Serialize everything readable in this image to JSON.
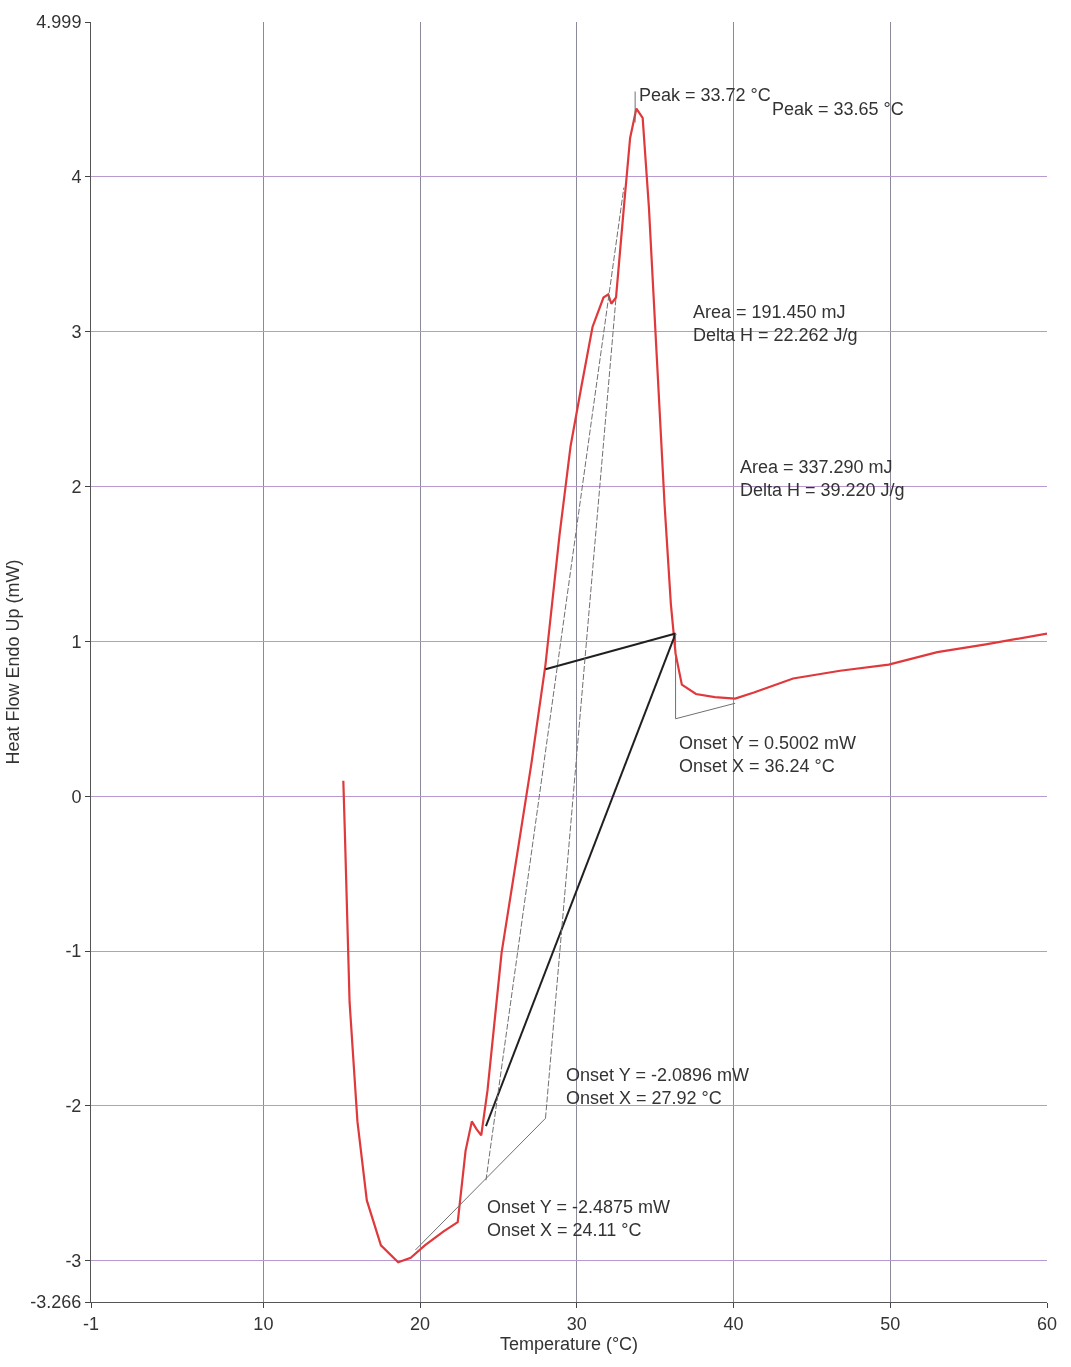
{
  "chart_data": {
    "type": "line",
    "xlabel": "Temperature (°C)",
    "ylabel": "Heat Flow Endo Up (mW)",
    "xlim": [
      -1,
      60
    ],
    "xticks": [
      -1,
      10,
      20,
      30,
      40,
      50,
      60
    ],
    "ylim": [
      -3.266,
      4.999
    ],
    "yticks": [
      -3.266,
      -3,
      -2,
      -1,
      0,
      1,
      2,
      3,
      4,
      4.999
    ],
    "grid": true,
    "marker": "none",
    "series": [
      {
        "color": "#e0393b",
        "x": [
          15.1,
          15.2,
          15.5,
          16.0,
          16.6,
          17.5,
          18.6,
          19.4,
          20.3,
          21.5,
          22.4,
          22.9,
          23.3,
          23.6,
          23.9,
          24.3,
          25.2,
          26.2,
          27.1,
          28.0,
          28.9,
          29.6,
          30.3,
          31.0,
          31.7,
          32.0,
          32.2,
          32.5,
          33.0,
          33.4,
          33.8,
          34.2,
          34.6,
          35.1,
          35.6,
          36.0,
          36.3,
          36.7,
          37.6,
          38.8,
          40.1,
          41.3,
          43.8,
          46.8,
          49.9,
          53.0,
          56.1,
          60.0
        ],
        "values": [
          0.1,
          -0.24,
          -1.33,
          -2.1,
          -2.61,
          -2.9,
          -3.01,
          -2.98,
          -2.9,
          -2.81,
          -2.75,
          -2.29,
          -2.1,
          -2.15,
          -2.19,
          -1.9,
          -1.01,
          -0.37,
          0.21,
          0.85,
          1.69,
          2.26,
          2.65,
          3.03,
          3.22,
          3.24,
          3.18,
          3.22,
          3.8,
          4.25,
          4.44,
          4.38,
          3.8,
          2.84,
          1.88,
          1.24,
          0.92,
          0.72,
          0.66,
          0.64,
          0.63,
          0.67,
          0.76,
          0.81,
          0.85,
          0.93,
          0.98,
          1.05
        ]
      },
      {
        "color": "#202020",
        "x": [
          28.0,
          36.3
        ],
        "values": [
          0.82,
          1.05
        ]
      },
      {
        "color": "#202020",
        "x": [
          24.2,
          36.3
        ],
        "values": [
          -2.13,
          1.05
        ]
      },
      {
        "color": "#707070",
        "x": [
          19.7,
          28.0
        ],
        "values": [
          -2.93,
          -2.08
        ]
      },
      {
        "color": "#707070",
        "x": [
          36.3,
          36.3,
          40.1
        ],
        "values": [
          1.05,
          0.5,
          0.6
        ]
      },
      {
        "color": "#707070",
        "x": [
          33.72,
          33.72
        ],
        "values": [
          4.55,
          4.35
        ]
      },
      {
        "color": "#707070",
        "line_style": "dashed",
        "x": [
          24.2,
          33.0
        ],
        "values": [
          -2.48,
          3.93
        ]
      },
      {
        "color": "#707070",
        "line_style": "dashed",
        "x": [
          28.0,
          32.5
        ],
        "values": [
          -2.08,
          3.22
        ]
      }
    ],
    "annotations": [
      {
        "text": "Peak = 33.72 °C",
        "x": 33.72,
        "y": 4.44
      },
      "Peak = 33.65 °C",
      "Area = 191.450 mJ\nDelta H = 22.262 J/g",
      "Area = 337.290 mJ\nDelta H = 39.220 J/g",
      {
        "text": "Onset Y = 0.5002 mW\nOnset X = 36.24 °C",
        "x": 36.24,
        "y": 0.5002
      },
      {
        "text": "Onset Y = -2.0896 mW\nOnset X = 27.92 °C",
        "x": 27.92,
        "y": -2.0896
      },
      {
        "text": "Onset Y = -2.4875 mW\nOnset X = 24.11 °C",
        "x": 24.11,
        "y": -2.4875
      }
    ]
  }
}
